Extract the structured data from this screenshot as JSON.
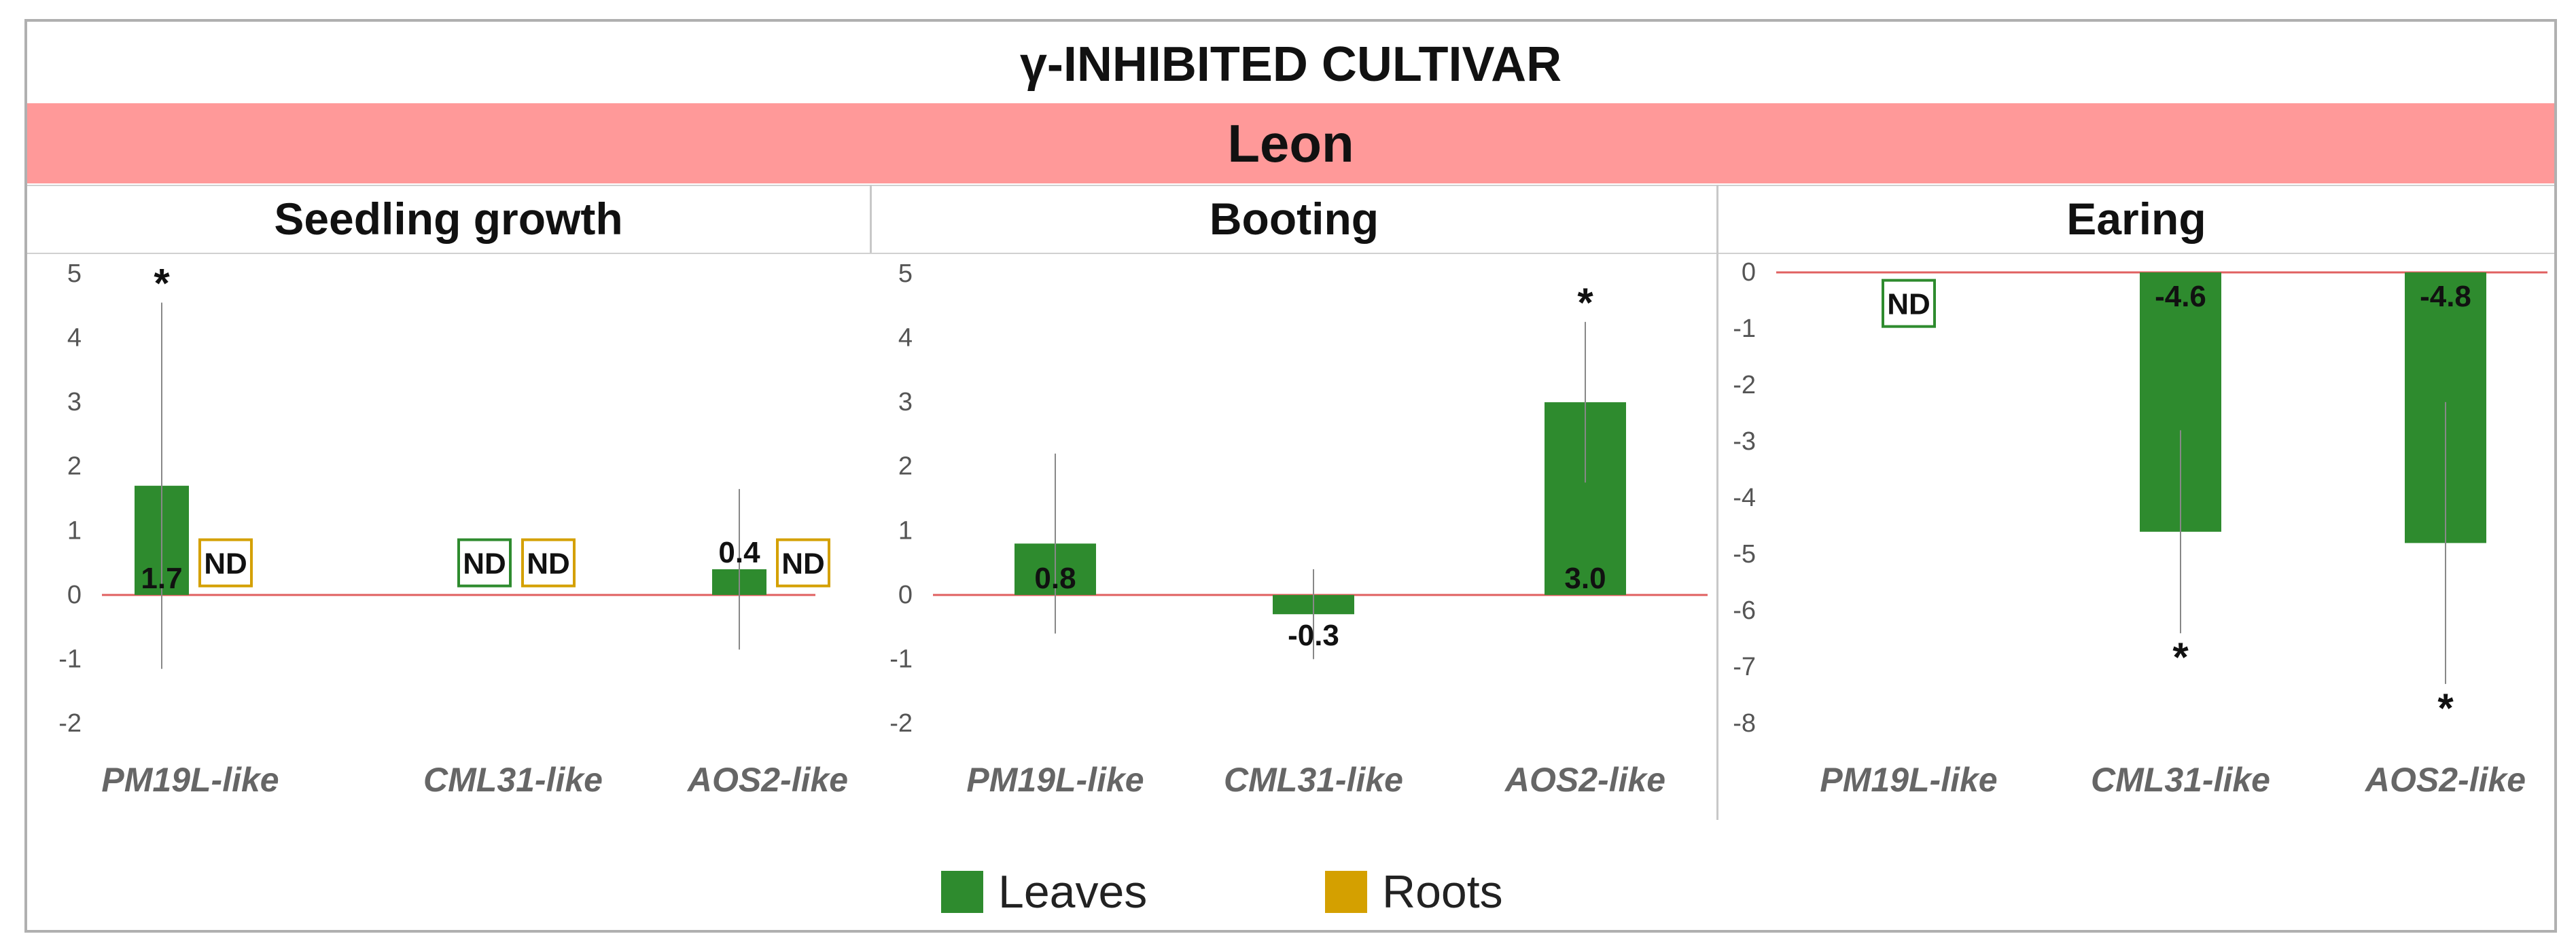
{
  "header": {
    "title": "γ-INHIBITED CULTIVAR"
  },
  "cultivar": {
    "name": "Leon"
  },
  "colors": {
    "leaves": "#2e8b2e",
    "roots": "#d4a000",
    "band": "#ff9999",
    "zero_line": "#e06060"
  },
  "legend": {
    "leaves_label": "Leaves",
    "roots_label": "Roots"
  },
  "chart_data": [
    {
      "type": "bar",
      "title": "Seedling growth",
      "categories": [
        "PM19L-like",
        "CML31-like",
        "AOS2-like"
      ],
      "ylim": [
        -2,
        5
      ],
      "yticks": [
        "-2",
        "-1",
        "0",
        "1",
        "2",
        "3",
        "4",
        "5"
      ],
      "series": [
        {
          "name": "Leaves",
          "values": [
            1.7,
            null,
            0.4
          ],
          "error": [
            2.85,
            null,
            1.25
          ],
          "labels": [
            "1.7",
            "ND",
            "0.4"
          ],
          "significant": [
            true,
            false,
            false
          ]
        },
        {
          "name": "Roots",
          "values": [
            null,
            null,
            null
          ],
          "error": [
            null,
            null,
            null
          ],
          "labels": [
            "ND",
            "ND",
            "ND"
          ],
          "significant": [
            false,
            false,
            false
          ]
        }
      ]
    },
    {
      "type": "bar",
      "title": "Booting",
      "categories": [
        "PM19L-like",
        "CML31-like",
        "AOS2-like"
      ],
      "ylim": [
        -2,
        5
      ],
      "yticks": [
        "-2",
        "-1",
        "0",
        "1",
        "2",
        "3",
        "4",
        "5"
      ],
      "series": [
        {
          "name": "Leaves",
          "values": [
            0.8,
            -0.3,
            3.0
          ],
          "error": [
            1.4,
            0.7,
            1.25
          ],
          "labels": [
            "0.8",
            "-0.3",
            "3.0"
          ],
          "significant": [
            false,
            false,
            true
          ]
        }
      ]
    },
    {
      "type": "bar",
      "title": "Earing",
      "categories": [
        "PM19L-like",
        "CML31-like",
        "AOS2-like"
      ],
      "ylim": [
        -8,
        0
      ],
      "yticks": [
        "-8",
        "-7",
        "-6",
        "-5",
        "-4",
        "-3",
        "-2",
        "-1",
        "0"
      ],
      "series": [
        {
          "name": "Leaves",
          "values": [
            null,
            -4.6,
            -4.8
          ],
          "error": [
            null,
            1.8,
            2.5
          ],
          "labels": [
            "ND",
            "-4.6",
            "-4.8"
          ],
          "significant": [
            false,
            true,
            true
          ]
        }
      ]
    }
  ]
}
